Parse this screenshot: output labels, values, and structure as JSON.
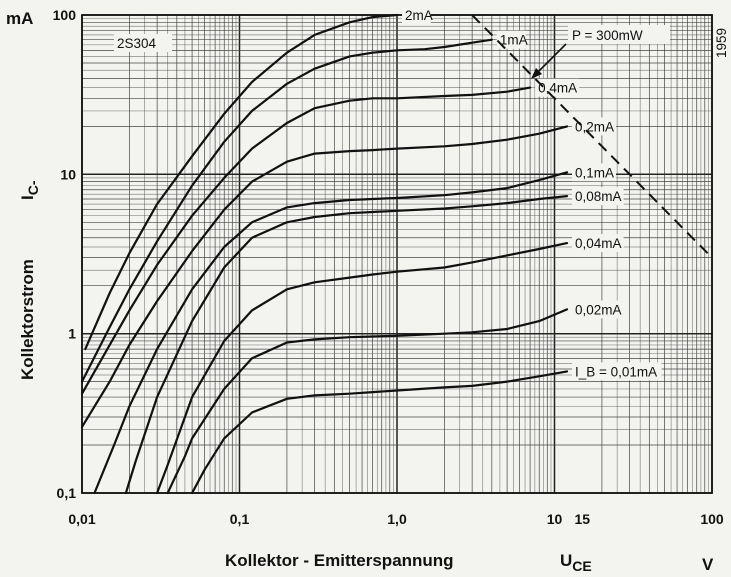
{
  "chart_data": {
    "type": "line",
    "scale": {
      "x": "log",
      "y": "log"
    },
    "xlim": [
      0.01,
      100
    ],
    "ylim": [
      0.1,
      100
    ],
    "grid": true,
    "legend": "curve labels at line ends",
    "y_unit": "mA",
    "x_unit": "V",
    "x_ticks": [
      {
        "value": 0.01,
        "label": "0,01"
      },
      {
        "value": 0.1,
        "label": "0,1"
      },
      {
        "value": 1,
        "label": "1,0"
      },
      {
        "value": 10,
        "label": "10"
      },
      {
        "value": 15,
        "label": "15"
      },
      {
        "value": 100,
        "label": "100"
      }
    ],
    "y_ticks": [
      {
        "value": 0.1,
        "label": "0,1"
      },
      {
        "value": 1,
        "label": "1"
      },
      {
        "value": 10,
        "label": "10"
      },
      {
        "value": 100,
        "label": "100"
      }
    ],
    "xlabel": "Kollektor - Emitterspannung",
    "xlabel_symbol": "U",
    "xlabel_sub": "CE",
    "ylabel": "Kollektorstrom",
    "ylabel_symbol": "I",
    "ylabel_sub": "C-",
    "device_label": "2S304",
    "year_label": "1959",
    "power_limit": {
      "label": "P = 300mW",
      "watts": 0.3
    },
    "series": [
      {
        "name": "2mA",
        "x": [
          0.0105,
          0.015,
          0.02,
          0.03,
          0.05,
          0.08,
          0.12,
          0.2,
          0.3,
          0.5,
          0.7,
          1.0
        ],
        "y": [
          0.8,
          1.8,
          3.2,
          6.5,
          13,
          24,
          38,
          58,
          75,
          90,
          97,
          100
        ]
      },
      {
        "name": "1mA",
        "x": [
          0.01,
          0.015,
          0.02,
          0.03,
          0.05,
          0.08,
          0.12,
          0.2,
          0.3,
          0.5,
          0.7,
          1.0,
          1.5,
          2.0,
          3.0,
          4.0
        ],
        "y": [
          0.5,
          1.1,
          1.9,
          3.8,
          8.5,
          16,
          25,
          37,
          46,
          55,
          58,
          60,
          61,
          63,
          67,
          70
        ]
      },
      {
        "name": "0,4mA",
        "x": [
          0.01,
          0.015,
          0.02,
          0.03,
          0.05,
          0.08,
          0.12,
          0.2,
          0.3,
          0.5,
          0.7,
          1.0,
          2.0,
          3.0,
          5.0,
          7.0
        ],
        "y": [
          0.42,
          0.85,
          1.4,
          2.7,
          5.5,
          9.5,
          14.5,
          21,
          26,
          29,
          30,
          30,
          31,
          31.5,
          33,
          35
        ]
      },
      {
        "name": "0,2mA",
        "x": [
          0.01,
          0.015,
          0.02,
          0.03,
          0.05,
          0.08,
          0.12,
          0.2,
          0.3,
          0.5,
          0.7,
          1.0,
          2.0,
          3.0,
          5.0,
          8.0,
          12.0
        ],
        "y": [
          0.26,
          0.5,
          0.85,
          1.6,
          3.3,
          6.0,
          9.0,
          12,
          13.5,
          14,
          14.2,
          14.5,
          15,
          15.5,
          16.5,
          18,
          20
        ]
      },
      {
        "name": "0,1mA",
        "x": [
          0.012,
          0.016,
          0.02,
          0.03,
          0.05,
          0.08,
          0.12,
          0.2,
          0.3,
          0.5,
          0.7,
          1.0,
          2.0,
          3.0,
          5.0,
          8.0,
          12.0
        ],
        "y": [
          0.1,
          0.2,
          0.35,
          0.8,
          1.9,
          3.5,
          5.0,
          6.2,
          6.6,
          6.9,
          7.0,
          7.1,
          7.4,
          7.7,
          8.2,
          9.2,
          10.3
        ]
      },
      {
        "name": "0,08mA",
        "x": [
          0.019,
          0.022,
          0.03,
          0.05,
          0.08,
          0.12,
          0.2,
          0.3,
          0.5,
          0.7,
          1.0,
          2.0,
          3.0,
          5.0,
          8.0,
          12.0
        ],
        "y": [
          0.1,
          0.16,
          0.4,
          1.2,
          2.6,
          4.0,
          5.0,
          5.4,
          5.7,
          5.8,
          5.9,
          6.1,
          6.3,
          6.6,
          7.0,
          7.3
        ]
      },
      {
        "name": "0,04mA",
        "x": [
          0.03,
          0.035,
          0.05,
          0.08,
          0.12,
          0.2,
          0.3,
          0.5,
          0.7,
          1.0,
          2.0,
          3.0,
          5.0,
          8.0,
          12.0
        ],
        "y": [
          0.1,
          0.15,
          0.4,
          0.9,
          1.4,
          1.9,
          2.1,
          2.25,
          2.35,
          2.45,
          2.6,
          2.8,
          3.1,
          3.4,
          3.7
        ]
      },
      {
        "name": "0,02mA",
        "x": [
          0.035,
          0.045,
          0.05,
          0.08,
          0.12,
          0.2,
          0.3,
          0.5,
          0.7,
          1.0,
          2.0,
          3.0,
          5.0,
          8.0,
          12.0
        ],
        "y": [
          0.1,
          0.17,
          0.22,
          0.45,
          0.7,
          0.88,
          0.92,
          0.95,
          0.96,
          0.97,
          1.0,
          1.02,
          1.07,
          1.2,
          1.42
        ]
      },
      {
        "name": "I_B = 0,01mA",
        "x": [
          0.05,
          0.06,
          0.08,
          0.12,
          0.2,
          0.3,
          0.5,
          0.7,
          1.0,
          2.0,
          3.0,
          5.0,
          8.0,
          12.0
        ],
        "y": [
          0.1,
          0.14,
          0.22,
          0.32,
          0.39,
          0.41,
          0.42,
          0.43,
          0.44,
          0.46,
          0.47,
          0.5,
          0.54,
          0.58
        ]
      }
    ]
  }
}
